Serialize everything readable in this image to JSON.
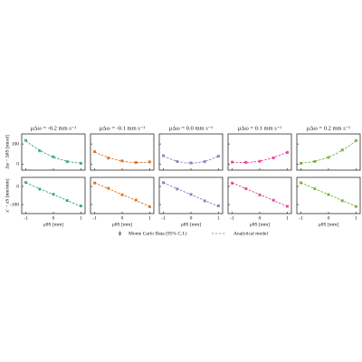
{
  "chart_data": {
    "type": "line",
    "legend": [
      {
        "name": "Monte Carlo Data (95% C.I.)",
        "color": "#888888"
      },
      {
        "name": "Analytical model",
        "color": "#888888"
      }
    ],
    "x_points": [
      -1,
      -0.5,
      0,
      0.5,
      1
    ],
    "x_model": [
      -1,
      -0.75,
      -0.5,
      -0.25,
      0,
      0.25,
      0.5,
      0.75,
      1
    ],
    "xlim": [
      -1.15,
      1.15
    ],
    "xticks": [
      -1,
      0,
      1
    ],
    "xlabel": "μθS [mm]",
    "rows": [
      {
        "ylabel": "Δφ − ΔθS [mrad]",
        "ylim": [
          -30,
          150
        ],
        "yticks": [
          0,
          100
        ]
      },
      {
        "ylabel": "z′ − zS [nm/mm]",
        "ylim": [
          -150,
          50
        ],
        "yticks": [
          -100,
          0
        ]
      }
    ],
    "panels": [
      {
        "title": "μΔω = -0.2 mm s⁻¹",
        "color": "#1b9e77",
        "data": [
          [
            118,
            66,
            36,
            12,
            4
          ],
          [
            22,
            -15,
            -43,
            -78,
            -108
          ]
        ],
        "model": [
          [
            115,
            90,
            69,
            50,
            35,
            23,
            14,
            8,
            5
          ],
          [
            20,
            4,
            -13,
            -29,
            -45,
            -61,
            -78,
            -94,
            -110
          ]
        ]
      },
      {
        "title": "μΔω = -0.1 mm s⁻¹",
        "color": "#d95f02",
        "data": [
          [
            62,
            30,
            16,
            8,
            11
          ],
          [
            19,
            -10,
            -46,
            -75,
            -112
          ]
        ],
        "model": [
          [
            60,
            45,
            33,
            23,
            15,
            10,
            8,
            8,
            10
          ],
          [
            20,
            4,
            -13,
            -29,
            -45,
            -61,
            -78,
            -94,
            -110
          ]
        ]
      },
      {
        "title": "μΔω = 0.0 mm s⁻¹",
        "color": "#7570b3",
        "data": [
          [
            42,
            13,
            6,
            12,
            39
          ],
          [
            21,
            -14,
            -44,
            -80,
            -107
          ]
        ],
        "model": [
          [
            40,
            25,
            14,
            7,
            5,
            7,
            14,
            25,
            40
          ],
          [
            20,
            4,
            -13,
            -29,
            -45,
            -61,
            -78,
            -94,
            -110
          ]
        ]
      },
      {
        "title": "μΔω = 0.1 mm s⁻¹",
        "color": "#e7298a",
        "data": [
          [
            10,
            9,
            14,
            31,
            58
          ],
          [
            18,
            -12,
            -47,
            -76,
            -110
          ]
        ],
        "model": [
          [
            10,
            8,
            8,
            10,
            15,
            23,
            33,
            45,
            60
          ],
          [
            20,
            4,
            -13,
            -29,
            -45,
            -61,
            -78,
            -94,
            -110
          ]
        ]
      },
      {
        "title": "μΔω = 0.2 mm s⁻¹",
        "color": "#66a61e",
        "data": [
          [
            4,
            13,
            33,
            70,
            117
          ],
          [
            20,
            -13,
            -45,
            -79,
            -111
          ]
        ],
        "model": [
          [
            5,
            8,
            14,
            23,
            35,
            50,
            69,
            90,
            115
          ],
          [
            20,
            4,
            -13,
            -29,
            -45,
            -61,
            -78,
            -94,
            -110
          ]
        ]
      }
    ]
  }
}
